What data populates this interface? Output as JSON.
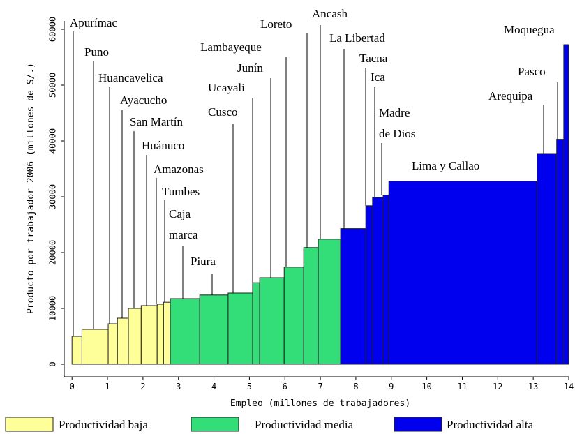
{
  "chart_data": {
    "type": "variable-width-bar",
    "xlabel": "Empleo (millones de trabajadores)",
    "ylabel": "Producto por trabajador 2006 (millones de S/.)",
    "xlim": [
      -0.22,
      14
    ],
    "ylim": [
      -2250,
      61500
    ],
    "xticks": [
      0,
      1,
      2,
      3,
      4,
      5,
      6,
      7,
      8,
      9,
      10,
      11,
      12,
      13,
      14
    ],
    "yticks": [
      0,
      10000,
      20000,
      30000,
      40000,
      50000,
      60000
    ],
    "series": [
      {
        "name": "Productividad baja",
        "color": "#ffff99",
        "categories": [
          "Apurímac",
          "Puno",
          "Huancavelica",
          "Ayacucho",
          "San Martín",
          "Huánuco",
          "Amazonas",
          "Tumbes"
        ],
        "bins": [
          0,
          0.28,
          1.02,
          1.28,
          1.59,
          1.95,
          2.4,
          2.58,
          2.77
        ],
        "values": [
          5000,
          6250,
          7250,
          8250,
          10000,
          10500,
          10750,
          11100
        ]
      },
      {
        "name": "Productividad media",
        "color": "#33dd77",
        "categories": [
          "Caja marca",
          "Piura",
          "Cusco",
          "Ucayali",
          "Junín",
          "Lambayeque",
          "Loreto",
          "Ancash"
        ],
        "bins": [
          2.77,
          3.6,
          4.4,
          5.09,
          5.29,
          5.98,
          6.53,
          6.94,
          7.57
        ],
        "values": [
          11750,
          12400,
          12750,
          14600,
          15500,
          17400,
          20900,
          22400
        ]
      },
      {
        "name": "Productividad alta",
        "color": "#0000ee",
        "categories": [
          "La Libertad",
          "Tacna",
          "Ica",
          "Madre de Dios",
          "Lima y Callao",
          "Arequipa",
          "Pasco",
          "Moquegua"
        ],
        "bins": [
          7.57,
          8.28,
          8.47,
          8.77,
          8.93,
          13.11,
          13.66,
          13.86,
          14
        ],
        "values": [
          24300,
          28400,
          29900,
          30300,
          32800,
          37750,
          40300,
          57250
        ]
      }
    ]
  }
}
